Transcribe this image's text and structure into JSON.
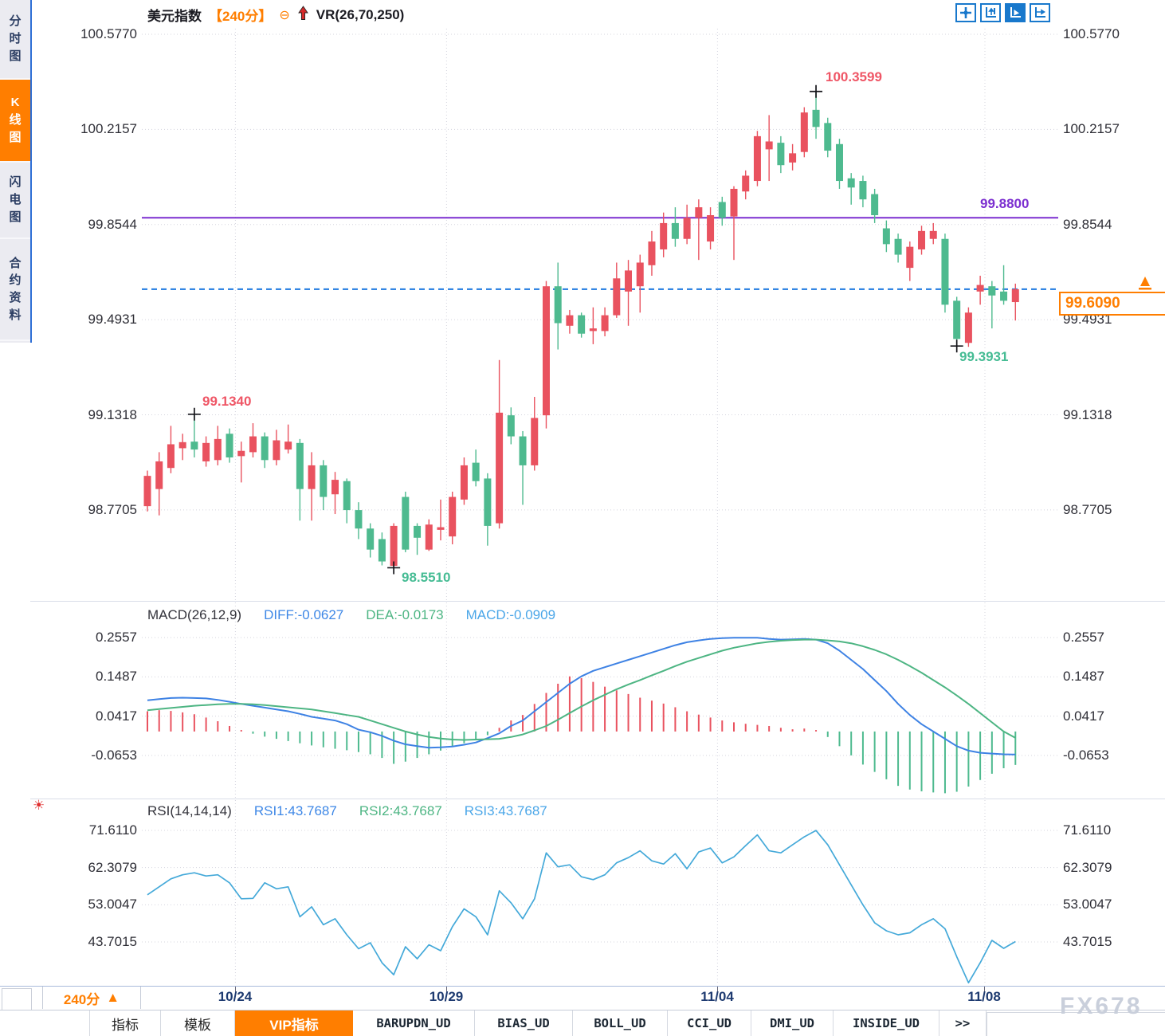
{
  "header": {
    "symbol": "美元指数",
    "period_tag": "【240分】",
    "minus_icon": "⊖",
    "overlay_indicator": "VR(26,70,250)"
  },
  "sidebar": {
    "tabs": [
      {
        "label": "分时图",
        "active": false
      },
      {
        "label": "K线图",
        "active": true
      },
      {
        "label": "闪电图",
        "active": false
      },
      {
        "label": "合约资料",
        "active": false
      }
    ]
  },
  "toolbar": {
    "icons": [
      "crosshair",
      "axis-zoom",
      "auto-scroll",
      "pan-right"
    ]
  },
  "macd_panel": {
    "title": "MACD(26,12,9)",
    "diff_label": "DIFF:-0.0627",
    "dea_label": "DEA:-0.0173",
    "macd_label": "MACD:-0.0909"
  },
  "rsi_panel": {
    "title": "RSI(14,14,14)",
    "rsi1_label": "RSI1:43.7687",
    "rsi2_label": "RSI2:43.7687",
    "rsi3_label": "RSI3:43.7687"
  },
  "bottom_bar": {
    "period_label": "240分",
    "period_arrow": "▲",
    "tabs": [
      "指标",
      "模板",
      "VIP指标",
      "BARUPDN_UD",
      "BIAS_UD",
      "BOLL_UD",
      "CCI_UD",
      "DMI_UD",
      "INSIDE_UD",
      ">>"
    ],
    "active_tab": "VIP指标"
  },
  "watermark": "FX678",
  "colors": {
    "up": "#e9525f",
    "down": "#4eba8f",
    "diff_line": "#3e82e4",
    "dea_line": "#4db583",
    "rsi_line": "#44a9d9",
    "purple_line": "#7c2fd0",
    "dashed_line": "#1f7ae0",
    "accent_orange": "#ff7e00",
    "cross_marker": "#15151a"
  },
  "chart_data": {
    "type": "candlestick-with-indicators",
    "title": "美元指数 240分",
    "x_labels": [
      "10/24",
      "10/29",
      "11/04",
      "11/08"
    ],
    "x_label_positions": [
      7.5,
      25.5,
      48.6,
      71.4
    ],
    "main_axis": {
      "values": [
        100.577,
        100.2157,
        99.8544,
        99.4931,
        99.1318,
        98.7705
      ],
      "labels": [
        "100.5770",
        "100.2157",
        "99.8544",
        "99.4931",
        "99.1318",
        "98.7705"
      ]
    },
    "reference_lines": {
      "purple": {
        "value": 99.88,
        "label": "99.8800"
      },
      "current_price": {
        "value": 99.609,
        "label": "99.6090"
      }
    },
    "annotations": [
      {
        "label": "99.1340",
        "candle": 4,
        "at": "high",
        "color": "red"
      },
      {
        "label": "100.3599",
        "candle": 57,
        "at": "high",
        "color": "red"
      },
      {
        "label": "98.5510",
        "candle": 21,
        "at": "low",
        "color": "green"
      },
      {
        "label": "99.3931",
        "candle": 69,
        "at": "low",
        "color": "green"
      }
    ],
    "ohlc": [
      [
        98.785,
        98.92,
        98.765,
        98.9
      ],
      [
        98.85,
        98.99,
        98.75,
        98.955
      ],
      [
        98.93,
        99.09,
        98.91,
        99.02
      ],
      [
        99.005,
        99.06,
        98.96,
        99.028
      ],
      [
        99.03,
        99.134,
        98.97,
        99.0
      ],
      [
        98.955,
        99.05,
        98.935,
        99.025
      ],
      [
        98.96,
        99.09,
        98.94,
        99.04
      ],
      [
        99.06,
        99.08,
        98.95,
        98.97
      ],
      [
        98.975,
        99.03,
        98.875,
        98.995
      ],
      [
        98.99,
        99.1,
        98.97,
        99.05
      ],
      [
        99.05,
        99.065,
        98.93,
        98.96
      ],
      [
        98.96,
        99.075,
        98.94,
        99.035
      ],
      [
        99.0,
        99.095,
        98.985,
        99.03
      ],
      [
        99.025,
        99.04,
        98.73,
        98.85
      ],
      [
        98.85,
        98.99,
        98.73,
        98.94
      ],
      [
        98.94,
        98.96,
        98.77,
        98.82
      ],
      [
        98.83,
        98.915,
        98.755,
        98.885
      ],
      [
        98.88,
        98.89,
        98.72,
        98.77
      ],
      [
        98.77,
        98.8,
        98.66,
        98.7
      ],
      [
        98.7,
        98.72,
        98.59,
        98.62
      ],
      [
        98.66,
        98.685,
        98.56,
        98.575
      ],
      [
        98.558,
        98.72,
        98.551,
        98.71
      ],
      [
        98.82,
        98.84,
        98.61,
        98.62
      ],
      [
        98.71,
        98.72,
        98.6,
        98.665
      ],
      [
        98.62,
        98.735,
        98.615,
        98.715
      ],
      [
        98.695,
        98.81,
        98.655,
        98.705
      ],
      [
        98.67,
        98.84,
        98.64,
        98.82
      ],
      [
        98.81,
        98.97,
        98.79,
        98.94
      ],
      [
        98.95,
        99.0,
        98.86,
        98.88
      ],
      [
        98.89,
        98.91,
        98.635,
        98.71
      ],
      [
        98.72,
        99.34,
        98.7,
        99.14
      ],
      [
        99.13,
        99.16,
        99.02,
        99.05
      ],
      [
        99.05,
        99.07,
        98.79,
        98.94
      ],
      [
        98.94,
        99.2,
        98.92,
        99.12
      ],
      [
        99.13,
        99.64,
        99.08,
        99.62
      ],
      [
        99.62,
        99.71,
        99.38,
        99.48
      ],
      [
        99.47,
        99.53,
        99.44,
        99.51
      ],
      [
        99.51,
        99.52,
        99.425,
        99.44
      ],
      [
        99.45,
        99.54,
        99.4,
        99.46
      ],
      [
        99.45,
        99.54,
        99.43,
        99.51
      ],
      [
        99.51,
        99.71,
        99.5,
        99.65
      ],
      [
        99.6,
        99.72,
        99.47,
        99.68
      ],
      [
        99.62,
        99.74,
        99.52,
        99.71
      ],
      [
        99.7,
        99.83,
        99.66,
        99.79
      ],
      [
        99.76,
        99.9,
        99.73,
        99.86
      ],
      [
        99.86,
        99.92,
        99.77,
        99.8
      ],
      [
        99.8,
        99.93,
        99.78,
        99.88
      ],
      [
        99.88,
        99.95,
        99.72,
        99.92
      ],
      [
        99.79,
        99.92,
        99.76,
        99.89
      ],
      [
        99.94,
        99.96,
        99.85,
        99.88
      ],
      [
        99.885,
        100.0,
        99.72,
        99.99
      ],
      [
        99.98,
        100.06,
        99.95,
        100.04
      ],
      [
        100.02,
        100.21,
        100.0,
        100.19
      ],
      [
        100.14,
        100.27,
        100.02,
        100.17
      ],
      [
        100.165,
        100.19,
        100.05,
        100.08
      ],
      [
        100.09,
        100.16,
        100.06,
        100.125
      ],
      [
        100.13,
        100.3,
        100.11,
        100.28
      ],
      [
        100.29,
        100.3599,
        100.18,
        100.225
      ],
      [
        100.24,
        100.26,
        100.11,
        100.135
      ],
      [
        100.16,
        100.18,
        99.99,
        100.02
      ],
      [
        100.03,
        100.05,
        99.93,
        99.995
      ],
      [
        100.02,
        100.04,
        99.92,
        99.95
      ],
      [
        99.97,
        99.99,
        99.86,
        99.89
      ],
      [
        99.84,
        99.87,
        99.75,
        99.78
      ],
      [
        99.8,
        99.82,
        99.71,
        99.74
      ],
      [
        99.69,
        99.79,
        99.64,
        99.77
      ],
      [
        99.76,
        99.85,
        99.74,
        99.83
      ],
      [
        99.8,
        99.86,
        99.78,
        99.83
      ],
      [
        99.8,
        99.82,
        99.52,
        99.55
      ],
      [
        99.565,
        99.58,
        99.3931,
        99.42
      ],
      [
        99.405,
        99.54,
        99.39,
        99.52
      ],
      [
        99.6,
        99.66,
        99.55,
        99.625
      ],
      [
        99.62,
        99.64,
        99.46,
        99.585
      ],
      [
        99.6,
        99.7,
        99.55,
        99.565
      ],
      [
        99.56,
        99.63,
        99.49,
        99.609
      ]
    ],
    "macd": {
      "axis": {
        "values": [
          0.2557,
          0.1487,
          0.0417,
          -0.0653
        ],
        "labels": [
          "0.2557",
          "0.1487",
          "0.0417",
          "-0.0653"
        ]
      },
      "diff": [
        0.085,
        0.088,
        0.091,
        0.092,
        0.091,
        0.09,
        0.086,
        0.081,
        0.075,
        0.07,
        0.065,
        0.06,
        0.055,
        0.048,
        0.04,
        0.035,
        0.03,
        0.02,
        0.005,
        -0.002,
        -0.012,
        -0.025,
        -0.035,
        -0.04,
        -0.044,
        -0.043,
        -0.041,
        -0.036,
        -0.03,
        -0.018,
        -0.005,
        0.015,
        0.03,
        0.055,
        0.08,
        0.105,
        0.13,
        0.15,
        0.165,
        0.175,
        0.185,
        0.195,
        0.205,
        0.215,
        0.225,
        0.235,
        0.243,
        0.248,
        0.252,
        0.254,
        0.255,
        0.255,
        0.255,
        0.252,
        0.25,
        0.251,
        0.252,
        0.25,
        0.24,
        0.22,
        0.195,
        0.17,
        0.14,
        0.11,
        0.075,
        0.045,
        0.02,
        0.0,
        -0.02,
        -0.04,
        -0.052,
        -0.058,
        -0.06,
        -0.062,
        -0.0627
      ],
      "dea": [
        0.058,
        0.061,
        0.064,
        0.067,
        0.07,
        0.072,
        0.074,
        0.075,
        0.075,
        0.074,
        0.072,
        0.069,
        0.066,
        0.063,
        0.06,
        0.055,
        0.05,
        0.045,
        0.04,
        0.03,
        0.02,
        0.01,
        0.0,
        -0.008,
        -0.015,
        -0.019,
        -0.022,
        -0.023,
        -0.022,
        -0.021,
        -0.02,
        -0.015,
        -0.008,
        0.003,
        0.015,
        0.032,
        0.05,
        0.068,
        0.085,
        0.1,
        0.115,
        0.128,
        0.14,
        0.153,
        0.165,
        0.178,
        0.19,
        0.2,
        0.21,
        0.22,
        0.228,
        0.234,
        0.24,
        0.244,
        0.247,
        0.249,
        0.25,
        0.25,
        0.248,
        0.245,
        0.24,
        0.232,
        0.222,
        0.21,
        0.195,
        0.178,
        0.16,
        0.14,
        0.12,
        0.098,
        0.075,
        0.05,
        0.025,
        0.0,
        -0.0173
      ],
      "hist": [
        0.055,
        0.058,
        0.056,
        0.052,
        0.047,
        0.038,
        0.028,
        0.015,
        0.004,
        -0.006,
        -0.014,
        -0.02,
        -0.026,
        -0.032,
        -0.038,
        -0.043,
        -0.047,
        -0.051,
        -0.056,
        -0.062,
        -0.072,
        -0.088,
        -0.082,
        -0.072,
        -0.062,
        -0.052,
        -0.042,
        -0.032,
        -0.022,
        -0.01,
        0.01,
        0.03,
        0.045,
        0.075,
        0.105,
        0.13,
        0.15,
        0.145,
        0.135,
        0.122,
        0.112,
        0.102,
        0.092,
        0.084,
        0.076,
        0.066,
        0.055,
        0.046,
        0.038,
        0.03,
        0.025,
        0.021,
        0.018,
        0.015,
        0.01,
        0.006,
        0.008,
        0.004,
        -0.015,
        -0.04,
        -0.065,
        -0.09,
        -0.11,
        -0.13,
        -0.148,
        -0.158,
        -0.163,
        -0.166,
        -0.168,
        -0.164,
        -0.15,
        -0.132,
        -0.115,
        -0.1,
        -0.091
      ]
    },
    "rsi": {
      "axis": {
        "values": [
          71.611,
          62.3079,
          53.0047,
          43.7015
        ],
        "labels": [
          "71.6110",
          "62.3079",
          "53.0047",
          "43.7015"
        ]
      },
      "values": [
        55.5,
        57.5,
        59.5,
        60.5,
        61.0,
        60.2,
        60.5,
        58.5,
        54.5,
        54.6,
        58.5,
        57.0,
        57.5,
        50.0,
        52.5,
        48.0,
        49.5,
        45.5,
        42.0,
        43.5,
        38.5,
        35.5,
        42.5,
        39.5,
        43.0,
        41.5,
        47.5,
        52.0,
        50.0,
        45.5,
        56.5,
        53.5,
        49.5,
        54.5,
        66.0,
        62.5,
        63.0,
        60.0,
        59.3,
        60.5,
        63.5,
        64.8,
        66.5,
        64.0,
        63.2,
        65.8,
        62.0,
        66.2,
        67.2,
        63.5,
        65.0,
        67.8,
        70.5,
        66.5,
        66.0,
        68.0,
        70.0,
        71.6,
        68.0,
        63.0,
        58.0,
        53.0,
        48.5,
        46.5,
        45.5,
        46.0,
        48.0,
        49.5,
        47.0,
        40.0,
        33.5,
        38.5,
        44.1,
        42.1,
        43.8
      ]
    }
  }
}
